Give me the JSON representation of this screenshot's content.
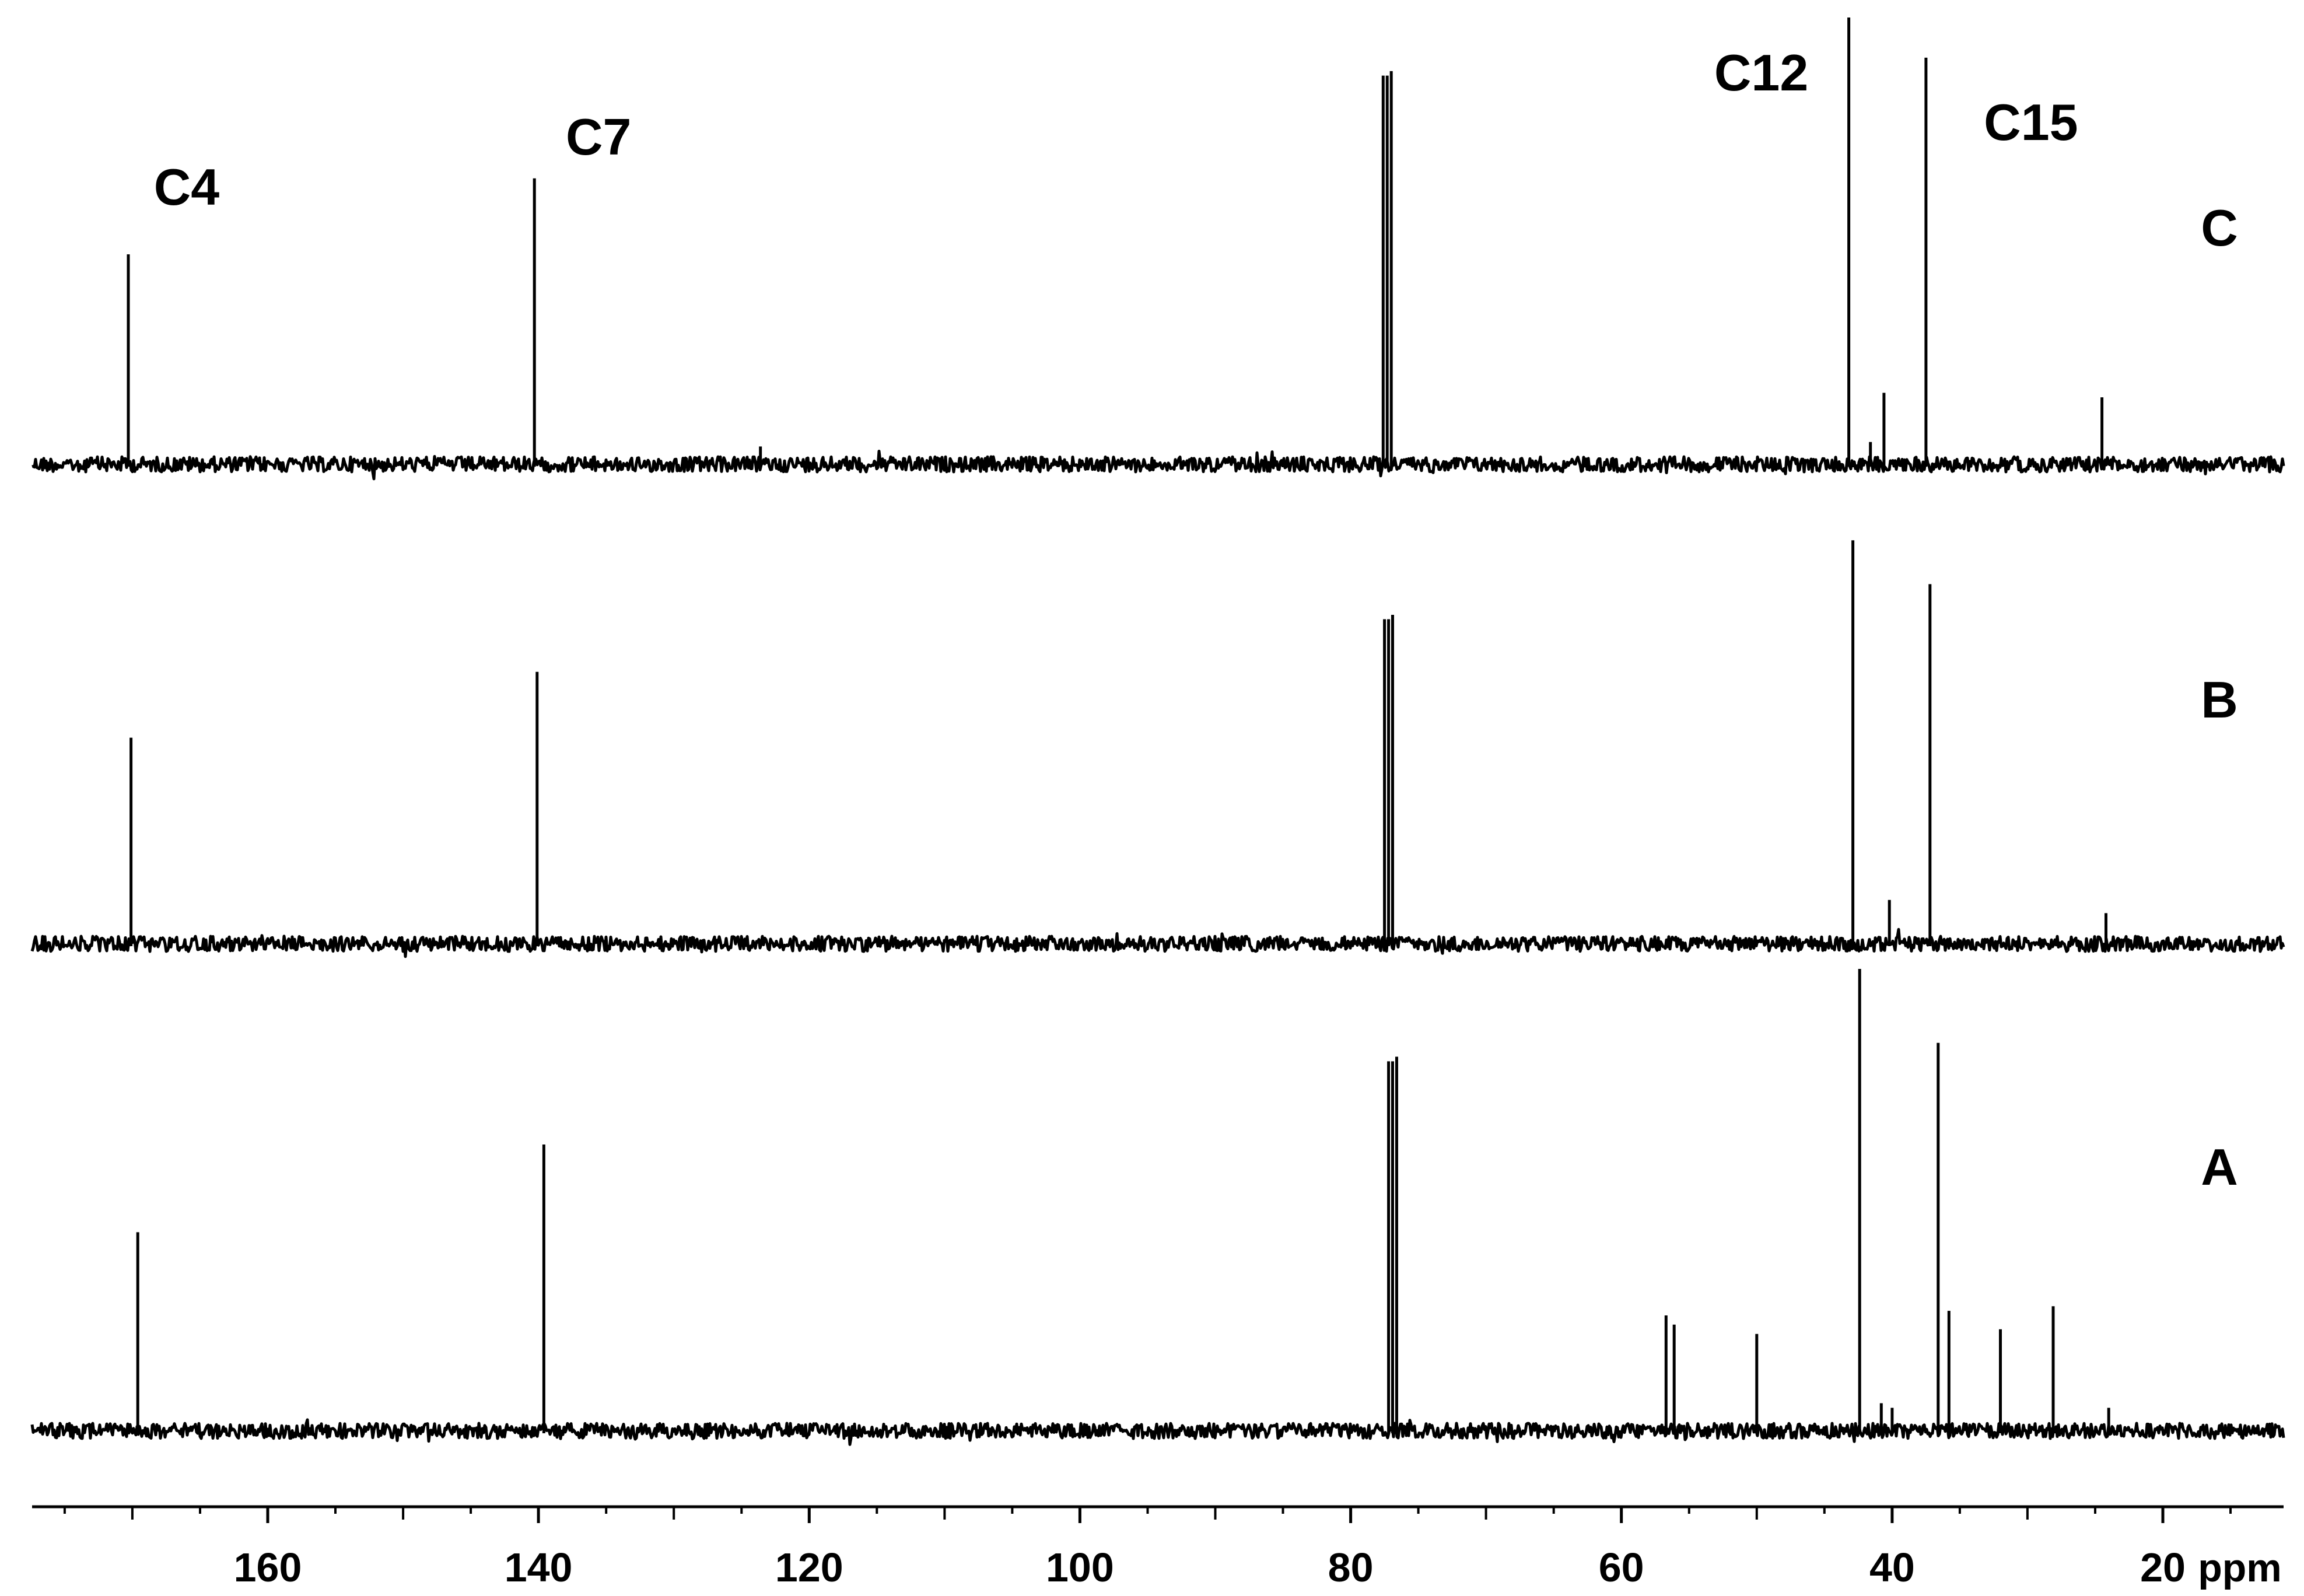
{
  "chart_data": {
    "type": "line",
    "title": "",
    "xlabel": "ppm",
    "ylabel": "",
    "x_reversed": true,
    "xlim": [
      180,
      10
    ],
    "xticks": [
      160,
      140,
      120,
      100,
      80,
      60,
      40,
      20
    ],
    "xtick_labels": [
      "160",
      "140",
      "120",
      "100",
      "80",
      "60",
      "40",
      "20"
    ],
    "grid": false,
    "color": "#000000",
    "stack_order": [
      "A",
      "B",
      "C"
    ],
    "spectra": [
      {
        "label": "C",
        "peaks": [
          {
            "ppm": 170.3,
            "height": 0.47
          },
          {
            "ppm": 140.3,
            "height": 0.64
          },
          {
            "ppm": 123.6,
            "height": 0.04
          },
          {
            "ppm": 77.6,
            "height": 0.87
          },
          {
            "ppm": 77.3,
            "height": 0.87
          },
          {
            "ppm": 77.0,
            "height": 0.88
          },
          {
            "ppm": 43.2,
            "height": 1.0
          },
          {
            "ppm": 41.6,
            "height": 0.05
          },
          {
            "ppm": 40.6,
            "height": 0.16
          },
          {
            "ppm": 37.5,
            "height": 0.91
          },
          {
            "ppm": 24.5,
            "height": 0.15
          }
        ],
        "annotations": [
          {
            "text": "C4",
            "ppm": 170.3
          },
          {
            "text": "C7",
            "ppm": 140.3
          },
          {
            "text": "C12",
            "ppm": 43.2
          },
          {
            "text": "C15",
            "ppm": 37.5
          }
        ]
      },
      {
        "label": "B",
        "peaks": [
          {
            "ppm": 170.1,
            "height": 0.47
          },
          {
            "ppm": 140.1,
            "height": 0.62
          },
          {
            "ppm": 77.5,
            "height": 0.74
          },
          {
            "ppm": 77.2,
            "height": 0.74
          },
          {
            "ppm": 76.9,
            "height": 0.75
          },
          {
            "ppm": 42.9,
            "height": 0.92
          },
          {
            "ppm": 40.2,
            "height": 0.1
          },
          {
            "ppm": 37.2,
            "height": 0.82
          },
          {
            "ppm": 24.2,
            "height": 0.07
          }
        ],
        "annotations": []
      },
      {
        "label": "A",
        "peaks": [
          {
            "ppm": 169.6,
            "height": 0.43
          },
          {
            "ppm": 139.6,
            "height": 0.62
          },
          {
            "ppm": 77.2,
            "height": 0.8
          },
          {
            "ppm": 76.9,
            "height": 0.8
          },
          {
            "ppm": 76.6,
            "height": 0.81
          },
          {
            "ppm": 56.7,
            "height": 0.25
          },
          {
            "ppm": 56.1,
            "height": 0.23
          },
          {
            "ppm": 50.0,
            "height": 0.21
          },
          {
            "ppm": 42.4,
            "height": 1.0
          },
          {
            "ppm": 40.8,
            "height": 0.06
          },
          {
            "ppm": 40.0,
            "height": 0.05
          },
          {
            "ppm": 36.6,
            "height": 0.84
          },
          {
            "ppm": 35.8,
            "height": 0.26
          },
          {
            "ppm": 32.0,
            "height": 0.22
          },
          {
            "ppm": 28.1,
            "height": 0.27
          },
          {
            "ppm": 24.0,
            "height": 0.05
          }
        ],
        "annotations": []
      }
    ]
  }
}
